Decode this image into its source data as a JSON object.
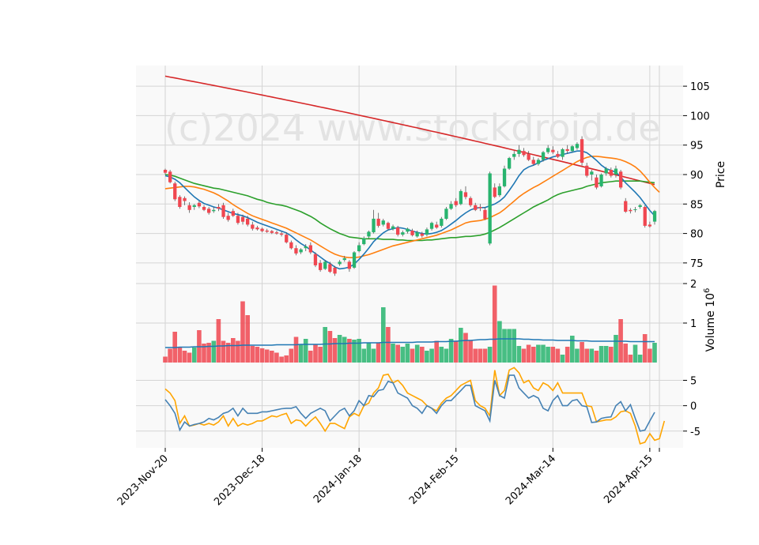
{
  "chart_data": {
    "type": "candlestick",
    "watermark": "(c)2024 www.stockdroid.de",
    "x_tick_labels": [
      "2023-Nov-20",
      "2023-Dec-18",
      "2024-Jan-18",
      "2024-Feb-15",
      "2024-Mar-14",
      "2024-Apr-15"
    ],
    "price_panel": {
      "ylabel": "Price",
      "ylim": [
        71.5,
        108.5
      ],
      "yticks": [
        75,
        80,
        85,
        90,
        95,
        100,
        105
      ],
      "candles": [
        [
          90.8,
          91,
          90,
          90.3
        ],
        [
          90.5,
          90.8,
          88.5,
          88.7
        ],
        [
          88.5,
          88.8,
          85.5,
          85.8
        ],
        [
          86.2,
          86.5,
          84.2,
          84.5
        ],
        [
          86,
          86.3,
          84.8,
          85.5
        ],
        [
          84.8,
          85.3,
          83.5,
          84
        ],
        [
          84.5,
          85,
          84,
          84.8
        ],
        [
          85.2,
          85.5,
          84.3,
          84.6
        ],
        [
          84.5,
          84.8,
          83.8,
          84
        ],
        [
          84.2,
          84.5,
          83.2,
          83.5
        ],
        [
          83.8,
          84.5,
          83.5,
          84
        ],
        [
          84.5,
          85,
          83.8,
          84.2
        ],
        [
          84.8,
          85.2,
          82.5,
          82.8
        ],
        [
          83,
          83.5,
          82,
          82.3
        ],
        [
          83.8,
          84.2,
          82.8,
          83
        ],
        [
          83,
          83.5,
          81.5,
          81.8
        ],
        [
          82.8,
          83.2,
          81.5,
          82
        ],
        [
          82.5,
          83,
          81.2,
          81.5
        ],
        [
          81.5,
          82,
          80.5,
          80.8
        ],
        [
          81,
          81.3,
          80.5,
          80.7
        ],
        [
          80.8,
          81,
          80.2,
          80.4
        ],
        [
          80.5,
          80.8,
          80.1,
          80.3
        ],
        [
          80.4,
          80.6,
          79.9,
          80.1
        ],
        [
          80.2,
          80.5,
          79.8,
          80
        ],
        [
          80,
          80.3,
          79.5,
          79.8
        ],
        [
          79.8,
          80.2,
          78.3,
          78.5
        ],
        [
          78.5,
          78.8,
          77.3,
          77.5
        ],
        [
          77.5,
          78,
          76.3,
          76.6
        ],
        [
          76.8,
          77.5,
          76.5,
          77.3
        ],
        [
          77.5,
          78.2,
          77,
          77.8
        ],
        [
          78,
          78.5,
          76.5,
          76.8
        ],
        [
          76.5,
          76.8,
          74.3,
          74.6
        ],
        [
          75,
          75.5,
          73.5,
          73.8
        ],
        [
          74,
          75.5,
          73.8,
          75.2
        ],
        [
          74.8,
          75.2,
          73.3,
          73.5
        ],
        [
          74.2,
          74.5,
          72.8,
          73.2
        ],
        [
          74.8,
          75.5,
          74.5,
          75.2
        ],
        [
          75.5,
          76.2,
          75.2,
          75.8
        ],
        [
          75.2,
          75.5,
          73.5,
          74
        ],
        [
          74.2,
          77,
          74,
          76.8
        ],
        [
          77,
          78.5,
          76.8,
          78
        ],
        [
          78.2,
          79.5,
          78,
          79.2
        ],
        [
          79.5,
          80.5,
          79.2,
          80.3
        ],
        [
          80.2,
          84,
          80,
          82.5
        ],
        [
          82.5,
          83.5,
          81,
          81.3
        ],
        [
          81.5,
          82.5,
          81.2,
          82.2
        ],
        [
          81.8,
          82,
          80.5,
          80.8
        ],
        [
          80.8,
          81.5,
          80.5,
          81.2
        ],
        [
          81,
          81.3,
          79.5,
          79.8
        ],
        [
          79.8,
          80.5,
          79.5,
          80.2
        ],
        [
          80.3,
          81,
          80,
          80.8
        ],
        [
          80.5,
          80.8,
          79.5,
          79.7
        ],
        [
          79.5,
          80.5,
          79.3,
          80.2
        ],
        [
          80,
          80.3,
          79.3,
          79.6
        ],
        [
          79.8,
          81,
          79.5,
          80.7
        ],
        [
          80.8,
          82,
          80.5,
          81.8
        ],
        [
          81.5,
          82,
          80.8,
          81
        ],
        [
          81.3,
          82.8,
          81,
          82.5
        ],
        [
          82.5,
          84.5,
          82.3,
          84.2
        ],
        [
          84.2,
          85.5,
          84,
          85
        ],
        [
          85.5,
          86,
          84.5,
          84.8
        ],
        [
          85,
          87.5,
          84.8,
          87.2
        ],
        [
          87,
          88,
          85.8,
          86.2
        ],
        [
          86,
          86.3,
          84.5,
          84.8
        ],
        [
          84.8,
          85.2,
          83.8,
          84
        ],
        [
          84.5,
          85,
          83.8,
          84.3
        ],
        [
          84,
          84.5,
          82.3,
          82.5
        ],
        [
          78.3,
          90.5,
          78,
          90.2
        ],
        [
          87.8,
          88.5,
          86,
          86.2
        ],
        [
          86.5,
          88.5,
          86.2,
          88
        ],
        [
          88,
          91.5,
          87.8,
          91
        ],
        [
          91,
          93,
          90.8,
          92.8
        ],
        [
          93,
          94,
          92.5,
          93.5
        ],
        [
          93.5,
          95,
          93,
          94.2
        ],
        [
          94,
          94.5,
          93,
          93.3
        ],
        [
          93.5,
          94,
          92.3,
          92.5
        ],
        [
          92.5,
          93,
          91.5,
          91.8
        ],
        [
          91.8,
          92.8,
          91.5,
          92.5
        ],
        [
          92.5,
          94,
          92.2,
          93.8
        ],
        [
          93.8,
          95,
          93.5,
          94.5
        ],
        [
          94.2,
          94.8,
          93.5,
          93.8
        ],
        [
          93.5,
          94,
          92.8,
          93
        ],
        [
          93,
          94.5,
          92.5,
          94.3
        ],
        [
          94.3,
          95,
          93.5,
          94
        ],
        [
          94,
          95,
          93.8,
          94.8
        ],
        [
          94.5,
          95.5,
          94.2,
          95.2
        ],
        [
          96,
          96.5,
          91.5,
          92
        ],
        [
          91.5,
          92,
          89.5,
          89.8
        ],
        [
          90,
          90.8,
          89,
          90.5
        ],
        [
          89.5,
          90,
          87.5,
          87.8
        ],
        [
          88,
          90.2,
          87.8,
          90
        ],
        [
          90.2,
          91.3,
          89.8,
          91
        ],
        [
          90.8,
          91.2,
          89.5,
          89.8
        ],
        [
          90,
          91.5,
          89.5,
          91
        ],
        [
          90.5,
          90.8,
          87.5,
          87.8
        ],
        [
          85.5,
          86,
          83.5,
          83.7
        ],
        [
          84,
          84.3,
          83.4,
          83.8
        ],
        [
          84,
          84.5,
          83.6,
          84.1
        ],
        [
          84.5,
          85,
          84.2,
          84.8
        ],
        [
          84.5,
          84.8,
          81,
          81.3
        ],
        [
          81.5,
          82,
          81,
          81.2
        ],
        [
          82,
          84,
          81.5,
          83.8
        ]
      ],
      "ma_blue": [
        89.8,
        89.6,
        89.2,
        88.6,
        87.8,
        87,
        86.2,
        85.6,
        85.1,
        84.8,
        84.5,
        84.3,
        84,
        83.7,
        83.4,
        83.2,
        83,
        82.7,
        82.3,
        81.9,
        81.6,
        81.3,
        81,
        80.7,
        80.4,
        80.1,
        79.6,
        78.9,
        78.3,
        77.8,
        77.2,
        76.6,
        76,
        75.4,
        74.9,
        74.3,
        74,
        74.1,
        74.3,
        74.8,
        75.6,
        76.5,
        77.5,
        78.6,
        79.4,
        80.1,
        80.6,
        80.8,
        81,
        80.9,
        80.7,
        80.4,
        80.2,
        80,
        79.9,
        80,
        80.2,
        80.5,
        81,
        81.6,
        82.2,
        82.9,
        83.5,
        84,
        84.3,
        84.4,
        84.4,
        84.7,
        85,
        85.5,
        86.2,
        87.3,
        88.5,
        89.8,
        90.8,
        91.3,
        91.6,
        92,
        92.4,
        92.7,
        93,
        93.2,
        93.4,
        93.6,
        93.8,
        94,
        94,
        93.7,
        93.1,
        92.4,
        91.6,
        91,
        90.7,
        90.4,
        89.6,
        88.6,
        87.8,
        87,
        86.1,
        85,
        83.9,
        83
      ],
      "ma_orange": [
        87.6,
        87.7,
        87.8,
        87.9,
        88,
        88,
        87.9,
        87.7,
        87.5,
        87.2,
        86.9,
        86.5,
        86,
        85.5,
        84.9,
        84.4,
        83.9,
        83.4,
        83,
        82.7,
        82.4,
        82.1,
        81.8,
        81.5,
        81.2,
        80.9,
        80.5,
        80.1,
        79.7,
        79.3,
        78.9,
        78.4,
        77.9,
        77.4,
        76.9,
        76.5,
        76.2,
        76,
        75.9,
        75.9,
        76,
        76.2,
        76.4,
        76.7,
        77,
        77.3,
        77.6,
        77.9,
        78.1,
        78.3,
        78.5,
        78.7,
        78.9,
        79.1,
        79.3,
        79.5,
        79.7,
        80,
        80.3,
        80.6,
        81,
        81.4,
        81.8,
        82,
        82.1,
        82.2,
        82.4,
        82.7,
        83.1,
        83.5,
        84.1,
        84.8,
        85.5,
        86.2,
        86.8,
        87.3,
        87.8,
        88.2,
        88.7,
        89.2,
        89.7,
        90.2,
        90.7,
        91.2,
        91.7,
        92.2,
        92.6,
        92.9,
        93.1,
        93.1,
        93,
        92.9,
        92.8,
        92.7,
        92.5,
        92.2,
        91.8,
        91.3,
        90.6,
        89.7,
        88.7,
        87.8,
        87
      ]
    },
    "lines_long": {
      "ma_green": [
        90,
        89.9,
        89.7,
        89.4,
        89.1,
        88.8,
        88.5,
        88.3,
        88.1,
        87.9,
        87.7,
        87.6,
        87.4,
        87.2,
        87,
        86.8,
        86.6,
        86.4,
        86.1,
        85.8,
        85.6,
        85.3,
        85.1,
        84.9,
        84.8,
        84.6,
        84.3,
        84,
        83.7,
        83.3,
        82.9,
        82.4,
        81.8,
        81.3,
        80.8,
        80.4,
        80,
        79.7,
        79.4,
        79.3,
        79.2,
        79.1,
        79.1,
        79.1,
        79.1,
        79,
        79,
        79,
        78.9,
        78.9,
        78.8,
        78.8,
        78.8,
        78.8,
        78.9,
        78.9,
        79,
        79.1,
        79.2,
        79.3,
        79.3,
        79.4,
        79.5,
        79.5,
        79.6,
        79.7,
        79.9,
        80.2,
        80.6,
        81,
        81.5,
        82,
        82.5,
        83,
        83.5,
        84,
        84.5,
        84.9,
        85.3,
        85.7,
        86.2,
        86.6,
        86.9,
        87.1,
        87.3,
        87.5,
        87.7,
        88,
        88.2,
        88.4,
        88.6,
        88.7,
        88.8,
        88.9,
        88.9,
        88.9,
        88.9,
        88.9,
        88.9,
        88.8,
        88.7,
        88.6
      ],
      "ma_red_start": 106.7,
      "ma_red_end": 88.3
    },
    "volume_panel": {
      "ylabel": "Volume  10^6",
      "yticks": [
        1,
        2
      ],
      "ylim": [
        0,
        2
      ],
      "volumes": [
        0.15,
        0.35,
        0.78,
        0.4,
        0.3,
        0.25,
        0.38,
        0.82,
        0.48,
        0.5,
        0.55,
        1.1,
        0.55,
        0.5,
        0.62,
        0.55,
        1.55,
        1.2,
        0.42,
        0.4,
        0.36,
        0.33,
        0.3,
        0.25,
        0.15,
        0.18,
        0.35,
        0.65,
        0.45,
        0.6,
        0.3,
        0.45,
        0.4,
        0.9,
        0.8,
        0.62,
        0.7,
        0.65,
        0.6,
        0.58,
        0.6,
        0.35,
        0.5,
        0.35,
        0.5,
        1.4,
        0.9,
        0.48,
        0.45,
        0.4,
        0.48,
        0.35,
        0.45,
        0.4,
        0.3,
        0.35,
        0.55,
        0.4,
        0.35,
        0.6,
        0.55,
        0.88,
        0.75,
        0.55,
        0.35,
        0.35,
        0.35,
        0.4,
        1.95,
        1.05,
        0.85,
        0.85,
        0.85,
        0.42,
        0.35,
        0.45,
        0.4,
        0.45,
        0.45,
        0.4,
        0.4,
        0.35,
        0.2,
        0.4,
        0.68,
        0.35,
        0.52,
        0.35,
        0.35,
        0.3,
        0.42,
        0.42,
        0.4,
        0.7,
        1.1,
        0.48,
        0.2,
        0.45,
        0.2,
        0.72,
        0.35,
        0.5
      ],
      "vol_avg": [
        0.38,
        0.38,
        0.38,
        0.39,
        0.39,
        0.39,
        0.4,
        0.4,
        0.4,
        0.41,
        0.41,
        0.42,
        0.42,
        0.43,
        0.43,
        0.43,
        0.44,
        0.44,
        0.44,
        0.44,
        0.44,
        0.44,
        0.44,
        0.45,
        0.45,
        0.45,
        0.45,
        0.45,
        0.46,
        0.46,
        0.46,
        0.46,
        0.46,
        0.47,
        0.47,
        0.48,
        0.48,
        0.48,
        0.49,
        0.49,
        0.49,
        0.5,
        0.5,
        0.5,
        0.5,
        0.51,
        0.51,
        0.51,
        0.51,
        0.51,
        0.51,
        0.51,
        0.52,
        0.52,
        0.52,
        0.52,
        0.53,
        0.53,
        0.53,
        0.54,
        0.54,
        0.55,
        0.56,
        0.56,
        0.57,
        0.58,
        0.58,
        0.59,
        0.59,
        0.6,
        0.6,
        0.6,
        0.6,
        0.6,
        0.59,
        0.59,
        0.58,
        0.58,
        0.57,
        0.57,
        0.57,
        0.56,
        0.56,
        0.56,
        0.56,
        0.55,
        0.55,
        0.55,
        0.54,
        0.54,
        0.54,
        0.54,
        0.54,
        0.54,
        0.54,
        0.54,
        0.53,
        0.53,
        0.53,
        0.53,
        0.53,
        0.53
      ]
    },
    "oscillator_panel": {
      "yticks": [
        -5,
        0,
        5
      ],
      "ylim": [
        -8.3,
        8.5
      ],
      "line_blue": [
        1.2,
        0,
        -1.5,
        -4.8,
        -3.2,
        -4,
        -3.7,
        -3.5,
        -3.2,
        -2.5,
        -2.8,
        -2.3,
        -1.5,
        -1.2,
        -0.5,
        -2,
        -0.5,
        -1.5,
        -1.5,
        -1.5,
        -1.2,
        -1.2,
        -1,
        -0.8,
        -0.6,
        -0.5,
        -0.5,
        -0.2,
        -1.5,
        -2.5,
        -1.5,
        -1,
        -0.5,
        -1,
        -3,
        -2,
        -1,
        -0.5,
        -2,
        -1,
        1,
        0,
        2,
        1.8,
        3,
        3.2,
        4.8,
        4.5,
        2.5,
        2,
        1.5,
        0,
        -0.5,
        -1.5,
        0,
        -0.5,
        -1.5,
        0,
        1,
        1,
        2,
        3,
        4,
        4,
        0,
        -0.5,
        -1,
        -3,
        5,
        2,
        1.5,
        6,
        6,
        3.5,
        2.5,
        1.5,
        2,
        1.5,
        -0.5,
        -1,
        1,
        2,
        0,
        0,
        1,
        1.2,
        0,
        -0.2,
        -3.3,
        -3.2,
        -2.5,
        -2.3,
        -2.2,
        0,
        0.8,
        -1,
        0.2,
        -2.5,
        -5,
        -4.8,
        -3,
        -1.3
      ],
      "line_orange": [
        3.3,
        2.5,
        1,
        -3.5,
        -2,
        -4,
        -3.8,
        -3.5,
        -3.8,
        -3.5,
        -3.8,
        -3.2,
        -2,
        -4,
        -2.5,
        -4,
        -3.5,
        -3.8,
        -3.5,
        -3,
        -3,
        -2.5,
        -2,
        -2.2,
        -1.8,
        -1.5,
        -3.5,
        -2.8,
        -3,
        -4,
        -3,
        -2.2,
        -3.5,
        -5,
        -3.5,
        -3.5,
        -4,
        -4.5,
        -2.2,
        -1.5,
        -2,
        0,
        0.5,
        2.5,
        3.5,
        6,
        6.2,
        4.5,
        5,
        4,
        2.5,
        2,
        1.5,
        1,
        0,
        -0.5,
        -1,
        0.5,
        1.5,
        2,
        3,
        4,
        4.5,
        5,
        1,
        0,
        -0.5,
        -2,
        7,
        2,
        3,
        7,
        7.5,
        6.5,
        4.5,
        5,
        3.5,
        3,
        4.5,
        4,
        3,
        4.5,
        2.5,
        2.5,
        2.5,
        2.5,
        2.5,
        0,
        -0.2,
        -3.2,
        -3,
        -2.8,
        -2.8,
        -2.2,
        -1.2,
        -1,
        -1.5,
        -4,
        -7.5,
        -7.2,
        -5.5,
        -6.8,
        -6.5,
        -3
      ]
    }
  }
}
